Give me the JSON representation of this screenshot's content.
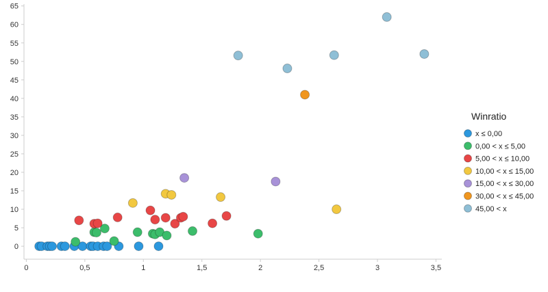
{
  "chart_data": {
    "type": "scatter",
    "title": "",
    "xlabel": "",
    "ylabel": "",
    "xlim": [
      -0.02,
      3.55
    ],
    "ylim": [
      -3.5,
      65.5
    ],
    "x_ticks": [
      0,
      0.5,
      1,
      1.5,
      2,
      2.5,
      3,
      3.5
    ],
    "x_tick_labels": [
      "0",
      "0,5",
      "1",
      "1,5",
      "2",
      "2,5",
      "3",
      "3,5"
    ],
    "y_ticks": [
      0,
      5,
      10,
      15,
      20,
      25,
      30,
      35,
      40,
      45,
      50,
      55,
      60,
      65
    ],
    "y_tick_labels": [
      "0",
      "5",
      "10",
      "15",
      "20",
      "25",
      "30",
      "35",
      "40",
      "45",
      "50",
      "55",
      "60",
      "65"
    ],
    "grid": false,
    "legend": {
      "title": "Winratio",
      "position": "right"
    },
    "series": [
      {
        "name": "x ≤ 0,00",
        "color": "#2c98de",
        "points": [
          [
            0.11,
            0
          ],
          [
            0.13,
            0
          ],
          [
            0.18,
            0
          ],
          [
            0.2,
            0
          ],
          [
            0.22,
            0
          ],
          [
            0.3,
            0
          ],
          [
            0.33,
            0
          ],
          [
            0.41,
            0
          ],
          [
            0.48,
            0
          ],
          [
            0.55,
            0
          ],
          [
            0.57,
            0
          ],
          [
            0.61,
            0
          ],
          [
            0.66,
            0
          ],
          [
            0.69,
            0
          ],
          [
            0.79,
            0
          ],
          [
            0.96,
            0
          ],
          [
            1.13,
            0
          ]
        ]
      },
      {
        "name": "0,00 < x ≤ 5,00",
        "color": "#3cbd6b",
        "points": [
          [
            0.42,
            1.2
          ],
          [
            0.58,
            3.8
          ],
          [
            0.6,
            3.7
          ],
          [
            0.67,
            4.8
          ],
          [
            0.75,
            1.4
          ],
          [
            0.95,
            3.8
          ],
          [
            1.08,
            3.4
          ],
          [
            1.1,
            3.2
          ],
          [
            1.14,
            3.8
          ],
          [
            1.2,
            2.9
          ],
          [
            1.42,
            4.1
          ],
          [
            1.98,
            3.4
          ]
        ]
      },
      {
        "name": "5,00 < x ≤ 10,00",
        "color": "#e84646",
        "points": [
          [
            0.45,
            7.0
          ],
          [
            0.58,
            6.1
          ],
          [
            0.61,
            6.2
          ],
          [
            0.78,
            7.8
          ],
          [
            1.06,
            9.7
          ],
          [
            1.1,
            7.2
          ],
          [
            1.19,
            7.7
          ],
          [
            1.27,
            6.1
          ],
          [
            1.32,
            7.7
          ],
          [
            1.34,
            8.0
          ],
          [
            1.59,
            6.2
          ],
          [
            1.71,
            8.2
          ]
        ]
      },
      {
        "name": "10,00 < x ≤ 15,00",
        "color": "#f2c840",
        "points": [
          [
            0.91,
            11.7
          ],
          [
            1.19,
            14.2
          ],
          [
            1.24,
            13.9
          ],
          [
            1.66,
            13.3
          ],
          [
            2.65,
            10.0
          ]
        ]
      },
      {
        "name": "15,00 < x ≤ 30,00",
        "color": "#a892d8",
        "points": [
          [
            1.35,
            18.5
          ],
          [
            2.13,
            17.5
          ]
        ]
      },
      {
        "name": "30,00 < x ≤ 45,00",
        "color": "#f0961f",
        "points": [
          [
            2.38,
            41.0
          ]
        ]
      },
      {
        "name": "45,00 < x",
        "color": "#8fbfd6",
        "points": [
          [
            1.81,
            51.6
          ],
          [
            2.23,
            48.1
          ],
          [
            2.63,
            51.7
          ],
          [
            3.08,
            62.0
          ],
          [
            3.4,
            52.0
          ]
        ]
      }
    ]
  }
}
